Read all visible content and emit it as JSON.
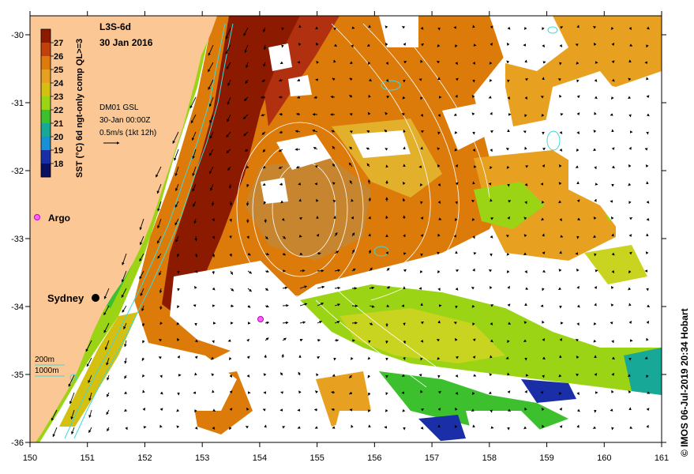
{
  "title": {
    "product": "L3S-6d",
    "date": "30 Jan 2016"
  },
  "colorbar": {
    "label": "SST (°C) 6d ngt-only comp QL>=3",
    "ticks": [
      "27",
      "26",
      "25",
      "24",
      "23",
      "22",
      "21",
      "20",
      "19",
      "18"
    ],
    "colors": [
      "#8b1a00",
      "#c0410a",
      "#dc7a0a",
      "#e8a020",
      "#d4c010",
      "#9ad414",
      "#3cc02e",
      "#18a898",
      "#1890d8",
      "#1a2ea8",
      "#0a1060"
    ]
  },
  "vector_info": {
    "line1": "DM01 GSL",
    "line2": "30-Jan 00:00Z",
    "line3": "0.5m/s (1kt 12h)"
  },
  "markers": {
    "argo_label": "Argo",
    "sydney_label": "Sydney"
  },
  "depth_legend": {
    "d200": "200m",
    "d1000": "1000m"
  },
  "axes": {
    "x_ticks": [
      "150",
      "151",
      "152",
      "153",
      "154",
      "155",
      "156",
      "157",
      "158",
      "159",
      "160",
      "161"
    ],
    "y_ticks": [
      "-30",
      "-31",
      "-32",
      "-33",
      "-34",
      "-35",
      "-36"
    ]
  },
  "credit": "© IMOS 06-Jul-2019 20:34 Hobart",
  "colors": {
    "land": "#fac795",
    "frame": "#000000",
    "contour": "#ffffff",
    "isobath": "#40d8d8"
  }
}
